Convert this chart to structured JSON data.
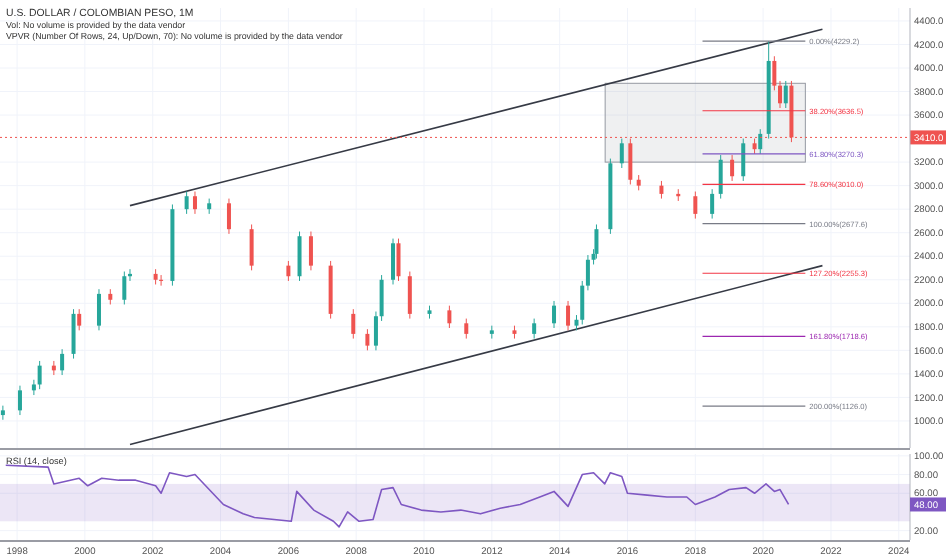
{
  "chart_data": [
    {
      "type": "candlestick",
      "title": "U.S. DOLLAR / COLOMBIAN PESO, 1M",
      "annotations": [
        "Vol: No volume is provided by the data vendor",
        "VPVR (Number Of Rows, 24, Up/Down, 70): No volume is provided by the data vendor"
      ],
      "x": [
        "1997-08",
        "1998-02",
        "1998-07",
        "1998-09",
        "1999-02",
        "1999-05",
        "1999-09",
        "1999-11",
        "2000-06",
        "2000-10",
        "2001-03",
        "2001-05",
        "2002-02",
        "2002-04",
        "2002-08",
        "2003-01",
        "2003-04",
        "2003-09",
        "2004-04",
        "2004-12",
        "2006-01",
        "2006-05",
        "2006-09",
        "2007-04",
        "2007-12",
        "2008-05",
        "2008-08",
        "2008-10",
        "2009-02",
        "2009-04",
        "2009-08",
        "2010-03",
        "2010-10",
        "2011-04",
        "2012-01",
        "2012-09",
        "2013-04",
        "2013-11",
        "2014-04",
        "2014-07",
        "2014-09",
        "2014-11",
        "2015-01",
        "2015-02",
        "2015-07",
        "2015-11",
        "2016-02",
        "2016-05",
        "2017-01",
        "2017-07",
        "2018-01",
        "2018-07",
        "2018-10",
        "2019-02",
        "2019-06",
        "2019-10",
        "2019-12",
        "2020-03",
        "2020-05",
        "2020-07",
        "2020-09",
        "2020-11"
      ],
      "ohlc": [
        [
          1050,
          1130,
          1010,
          1090
        ],
        [
          1090,
          1300,
          1050,
          1260
        ],
        [
          1260,
          1350,
          1220,
          1310
        ],
        [
          1310,
          1510,
          1270,
          1470
        ],
        [
          1470,
          1510,
          1390,
          1430
        ],
        [
          1430,
          1610,
          1390,
          1570
        ],
        [
          1570,
          1950,
          1530,
          1910
        ],
        [
          1910,
          1950,
          1770,
          1810
        ],
        [
          1810,
          2120,
          1770,
          2080
        ],
        [
          2080,
          2120,
          1990,
          2030
        ],
        [
          2030,
          2270,
          1990,
          2230
        ],
        [
          2230,
          2290,
          2190,
          2250
        ],
        [
          2250,
          2290,
          2160,
          2200
        ],
        [
          2200,
          2240,
          2150,
          2190
        ],
        [
          2190,
          2840,
          2150,
          2800
        ],
        [
          2800,
          2950,
          2760,
          2910
        ],
        [
          2910,
          2950,
          2760,
          2800
        ],
        [
          2800,
          2890,
          2760,
          2850
        ],
        [
          2850,
          2890,
          2590,
          2630
        ],
        [
          2630,
          2670,
          2280,
          2320
        ],
        [
          2320,
          2360,
          2190,
          2230
        ],
        [
          2230,
          2610,
          2190,
          2570
        ],
        [
          2570,
          2610,
          2280,
          2320
        ],
        [
          2320,
          2360,
          1870,
          1910
        ],
        [
          1910,
          1950,
          1700,
          1740
        ],
        [
          1740,
          1780,
          1600,
          1640
        ],
        [
          1640,
          1930,
          1600,
          1890
        ],
        [
          1890,
          2240,
          1850,
          2200
        ],
        [
          2200,
          2550,
          2160,
          2510
        ],
        [
          2510,
          2550,
          2190,
          2230
        ],
        [
          2230,
          2270,
          1870,
          1910
        ],
        [
          1910,
          1980,
          1870,
          1940
        ],
        [
          1940,
          1980,
          1790,
          1830
        ],
        [
          1830,
          1870,
          1700,
          1740
        ],
        [
          1740,
          1810,
          1700,
          1770
        ],
        [
          1770,
          1810,
          1700,
          1740
        ],
        [
          1740,
          1870,
          1700,
          1830
        ],
        [
          1830,
          2020,
          1790,
          1980
        ],
        [
          1980,
          2020,
          1770,
          1810
        ],
        [
          1810,
          1900,
          1770,
          1860
        ],
        [
          1860,
          2190,
          1820,
          2150
        ],
        [
          2150,
          2410,
          2110,
          2370
        ],
        [
          2370,
          2460,
          2330,
          2420
        ],
        [
          2420,
          2670,
          2380,
          2630
        ],
        [
          2630,
          3230,
          2590,
          3190
        ],
        [
          3190,
          3400,
          3150,
          3360
        ],
        [
          3360,
          3400,
          3010,
          3050
        ],
        [
          3050,
          3090,
          2960,
          3000
        ],
        [
          3000,
          3040,
          2890,
          2930
        ],
        [
          2930,
          2970,
          2870,
          2910
        ],
        [
          2910,
          2950,
          2720,
          2760
        ],
        [
          2760,
          2970,
          2720,
          2930
        ],
        [
          2930,
          3260,
          2890,
          3220
        ],
        [
          3220,
          3260,
          3040,
          3080
        ],
        [
          3080,
          3400,
          3040,
          3360
        ],
        [
          3360,
          3400,
          3270,
          3310
        ],
        [
          3310,
          3480,
          3270,
          3440
        ],
        [
          3440,
          4229.2,
          3400,
          4060
        ],
        [
          4060,
          4100,
          3810,
          3850
        ],
        [
          3850,
          3890,
          3660,
          3700
        ],
        [
          3700,
          3890,
          3660,
          3850
        ],
        [
          3850,
          3890,
          3370,
          3410
        ]
      ],
      "series": [
        {
          "type": "line",
          "x": [
            "2001-05",
            "2021-10"
          ],
          "values": [
            2830,
            4330
          ],
          "color": "#363a45"
        },
        {
          "type": "line",
          "x": [
            "2001-05",
            "2021-10"
          ],
          "values": [
            800,
            2320
          ],
          "color": "#363a45"
        }
      ],
      "ref_lines": [
        {
          "axis": "y",
          "value": 4229.2,
          "label": "0.00%(4229.2)",
          "color": "#787b86"
        },
        {
          "axis": "y",
          "value": 3636.5,
          "label": "38.20%(3636.5)",
          "color": "#f23645"
        },
        {
          "axis": "y",
          "value": 3270.3,
          "label": "61.80%(3270.3)",
          "color": "#7e57c2"
        },
        {
          "axis": "y",
          "value": 3010,
          "label": "78.60%(3010.0)",
          "color": "#f23645"
        },
        {
          "axis": "y",
          "value": 2677.6,
          "label": "100.00%(2677.6)",
          "color": "#787b86"
        },
        {
          "axis": "y",
          "value": 2255.3,
          "label": "127.20%(2255.3)",
          "color": "#f23645"
        },
        {
          "axis": "y",
          "value": 1718.6,
          "label": "161.80%(1718.6)",
          "color": "#9c27b0"
        },
        {
          "axis": "y",
          "value": 1126,
          "label": "200.00%(1126.0)",
          "color": "#787b86"
        },
        {
          "axis": "y",
          "value": 3410,
          "label": "3410.0",
          "color": "#ef5350",
          "line_style": "dotted"
        }
      ],
      "bands": [
        {
          "axis": "y",
          "from": 3200,
          "to": 3870,
          "color": "#9598a1"
        }
      ],
      "xlim": [
        "1997-07",
        "2024-05"
      ],
      "ylim": [
        770,
        4510
      ],
      "yticks": [
        {
          "value": 1000,
          "label": "1000.0"
        },
        {
          "value": 1200,
          "label": "1200.0"
        },
        {
          "value": 1400,
          "label": "1400.0"
        },
        {
          "value": 1600,
          "label": "1600.0"
        },
        {
          "value": 1800,
          "label": "1800.0"
        },
        {
          "value": 2000,
          "label": "2000.0"
        },
        {
          "value": 2200,
          "label": "2200.0"
        },
        {
          "value": 2400,
          "label": "2400.0"
        },
        {
          "value": 2600,
          "label": "2600.0"
        },
        {
          "value": 2800,
          "label": "2800.0"
        },
        {
          "value": 3000,
          "label": "3000.0"
        },
        {
          "value": 3200,
          "label": "3200.0"
        },
        {
          "value": 3600,
          "label": "3600.0"
        },
        {
          "value": 3800,
          "label": "3800.0"
        },
        {
          "value": 4000,
          "label": "4000.0"
        },
        {
          "value": 4200,
          "label": "4200.0"
        },
        {
          "value": 4400,
          "label": "4400.0"
        }
      ],
      "xticks": [
        "1998",
        "2000",
        "2002",
        "2004",
        "2006",
        "2008",
        "2010",
        "2012",
        "2014",
        "2016",
        "2018",
        "2020",
        "2022",
        "2024"
      ],
      "tick_labels": "y",
      "grid": true
    },
    {
      "type": "line",
      "title": "RSI (14, close)",
      "series": [
        {
          "color": "#7e57c2",
          "x": [
            "1997-09",
            "1998-12",
            "1999-02",
            "1999-11",
            "2000-02",
            "2000-07",
            "2001-01",
            "2001-07",
            "2002-02",
            "2002-04",
            "2002-07",
            "2003-01",
            "2003-04",
            "2003-09",
            "2004-02",
            "2004-09",
            "2005-01",
            "2005-08",
            "2006-02",
            "2006-04",
            "2006-10",
            "2007-05",
            "2007-07",
            "2007-10",
            "2008-02",
            "2008-07",
            "2008-10",
            "2009-02",
            "2009-05",
            "2009-12",
            "2010-07",
            "2011-02",
            "2011-09",
            "2012-04",
            "2012-11",
            "2013-06",
            "2013-11",
            "2014-04",
            "2014-09",
            "2015-01",
            "2015-05",
            "2015-07",
            "2015-11",
            "2016-01",
            "2016-08",
            "2017-03",
            "2017-10",
            "2018-01",
            "2018-08",
            "2019-01",
            "2019-07",
            "2019-10",
            "2020-02",
            "2020-05",
            "2020-07",
            "2020-10"
          ],
          "values": [
            90,
            88,
            70,
            76,
            68,
            76,
            74,
            74,
            68,
            60,
            82,
            78,
            80,
            64,
            48,
            38,
            34,
            32,
            30,
            62,
            42,
            30,
            24,
            40,
            30,
            32,
            64,
            66,
            48,
            42,
            40,
            42,
            38,
            44,
            48,
            56,
            62,
            46,
            80,
            82,
            70,
            82,
            78,
            60,
            58,
            56,
            56,
            48,
            56,
            64,
            66,
            60,
            70,
            62,
            64,
            48
          ]
        }
      ],
      "bands": [
        {
          "axis": "y",
          "from": 30,
          "to": 70,
          "color": "#7e57c2"
        }
      ],
      "annotations": [
        "48.00"
      ],
      "xlim": [
        "1997-07",
        "2024-05"
      ],
      "ylim": [
        10,
        102
      ],
      "xticks": [
        "1998",
        "2000",
        "2002",
        "2004",
        "2006",
        "2008",
        "2010",
        "2012",
        "2014",
        "2016",
        "2018",
        "2020",
        "2022",
        "2024"
      ],
      "yticks": [
        {
          "value": 20,
          "label": "20.00"
        },
        {
          "value": 60,
          "label": "60.00"
        },
        {
          "value": 80,
          "label": "80.00"
        },
        {
          "value": 100,
          "label": "100.00"
        }
      ],
      "grid": true
    }
  ]
}
